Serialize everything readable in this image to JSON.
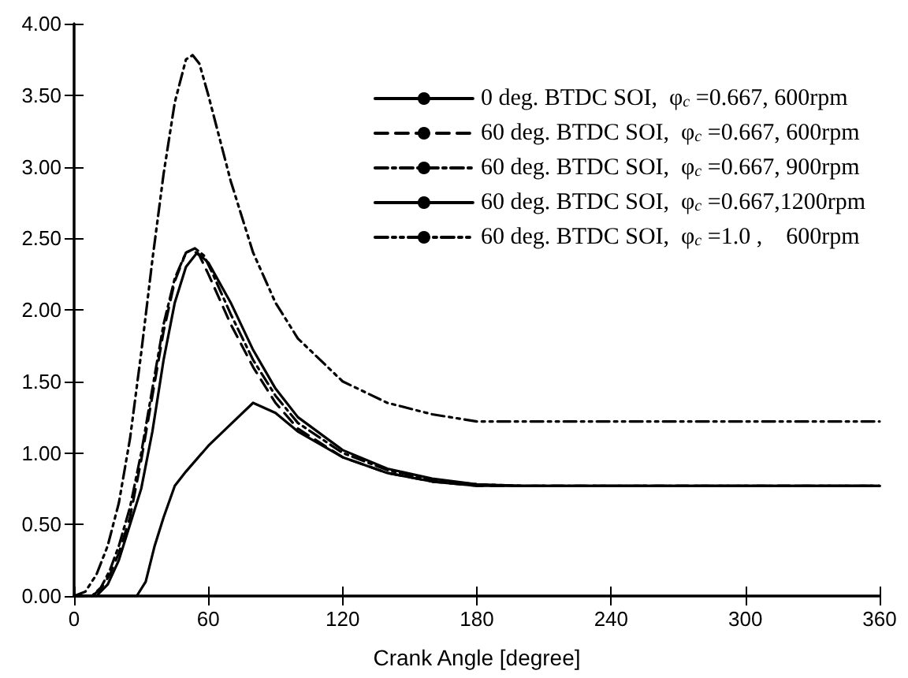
{
  "chart_data": {
    "type": "line",
    "xlabel": "Crank Angle [degree]",
    "xlim": [
      0,
      360
    ],
    "xticks": [
      0,
      60,
      120,
      180,
      240,
      300,
      360
    ],
    "ylim": [
      0,
      4
    ],
    "yticks": [
      {
        "value": 0,
        "label": "0.00"
      },
      {
        "value": 0.5,
        "label": "0.50"
      },
      {
        "value": 1,
        "label": "1.00"
      },
      {
        "value": 1.5,
        "label": "1.50"
      },
      {
        "value": 2,
        "label": "2.00"
      },
      {
        "value": 2.5,
        "label": "2.50"
      },
      {
        "value": 3,
        "label": "3.00"
      },
      {
        "value": 3.5,
        "label": "3.50"
      },
      {
        "value": 4,
        "label": "4.00"
      }
    ],
    "grid": false,
    "legend": "top right",
    "marker": "none",
    "series": [
      {
        "name": "0 deg. BTDC SOI,  φ$_{c}$ =0.667, 600rpm",
        "color": "#000000",
        "line_style": "solid",
        "x": [
          0,
          28,
          32,
          36,
          40,
          45,
          50,
          60,
          70,
          80,
          90,
          100,
          120,
          140,
          160,
          180,
          200,
          360
        ],
        "values": [
          0,
          0,
          0.1,
          0.35,
          0.55,
          0.77,
          0.87,
          1.05,
          1.2,
          1.35,
          1.28,
          1.15,
          0.97,
          0.86,
          0.8,
          0.77,
          0.77,
          0.77
        ]
      },
      {
        "name": "60 deg. BTDC SOI,  φ$_{c}$ =0.667, 600rpm",
        "color": "#000000",
        "line_style": "dashed",
        "x": [
          0,
          8,
          12,
          16,
          20,
          25,
          30,
          35,
          40,
          45,
          50,
          53,
          56,
          60,
          70,
          80,
          90,
          100,
          120,
          140,
          160,
          180,
          200,
          360
        ],
        "values": [
          0,
          0,
          0.05,
          0.15,
          0.3,
          0.55,
          0.95,
          1.4,
          1.85,
          2.2,
          2.4,
          2.42,
          2.38,
          2.25,
          1.9,
          1.6,
          1.35,
          1.17,
          0.97,
          0.86,
          0.8,
          0.77,
          0.77,
          0.77
        ]
      },
      {
        "name": "60 deg. BTDC SOI,  φ$_{c}$ =0.667, 900rpm",
        "color": "#000000",
        "line_style": "dashdot",
        "x": [
          0,
          8,
          12,
          16,
          20,
          25,
          30,
          35,
          40,
          45,
          50,
          54,
          58,
          62,
          70,
          80,
          90,
          100,
          120,
          140,
          160,
          180,
          200,
          360
        ],
        "values": [
          0,
          0,
          0.06,
          0.18,
          0.35,
          0.62,
          1.0,
          1.45,
          1.9,
          2.22,
          2.4,
          2.43,
          2.38,
          2.25,
          1.97,
          1.65,
          1.4,
          1.21,
          1.0,
          0.88,
          0.81,
          0.78,
          0.77,
          0.77
        ]
      },
      {
        "name": "60 deg. BTDC SOI,  φ$_{c}$ =0.667,1200rpm",
        "color": "#000000",
        "line_style": "solid",
        "x": [
          0,
          10,
          15,
          20,
          25,
          30,
          35,
          40,
          45,
          50,
          55,
          60,
          70,
          80,
          90,
          100,
          120,
          140,
          160,
          180,
          200,
          360
        ],
        "values": [
          0,
          0,
          0.08,
          0.25,
          0.5,
          0.75,
          1.15,
          1.65,
          2.05,
          2.3,
          2.4,
          2.33,
          2.05,
          1.72,
          1.45,
          1.25,
          1.02,
          0.89,
          0.82,
          0.78,
          0.77,
          0.77
        ]
      },
      {
        "name": "60 deg. BTDC SOI,  φ$_{c}$ =1.0 ,    600rpm",
        "color": "#000000",
        "line_style": "dashdotdot",
        "x": [
          0,
          5,
          10,
          15,
          20,
          25,
          30,
          35,
          40,
          45,
          50,
          53,
          56,
          60,
          70,
          80,
          90,
          100,
          120,
          140,
          160,
          180,
          200,
          360
        ],
        "values": [
          0,
          0.03,
          0.15,
          0.35,
          0.65,
          1.1,
          1.7,
          2.35,
          2.95,
          3.45,
          3.75,
          3.78,
          3.72,
          3.5,
          2.9,
          2.4,
          2.05,
          1.8,
          1.5,
          1.35,
          1.27,
          1.22,
          1.22,
          1.22
        ]
      }
    ]
  }
}
